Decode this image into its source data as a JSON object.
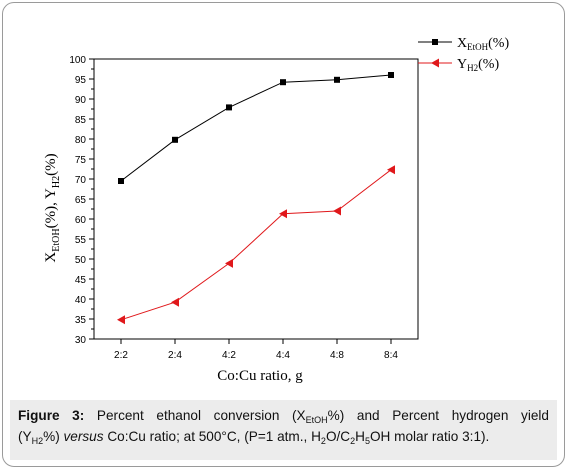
{
  "chart_data": {
    "type": "line",
    "categories": [
      "2:2",
      "2:4",
      "4:2",
      "4:4",
      "4:8",
      "8:4"
    ],
    "series": [
      {
        "name": "X_EtOH(%)",
        "values": [
          69.5,
          79.8,
          87.9,
          94.2,
          94.8,
          96.0
        ],
        "color": "#000000",
        "marker": "square"
      },
      {
        "name": "Y_H2(%)",
        "values": [
          34.8,
          39.2,
          48.9,
          61.3,
          62.0,
          72.3
        ],
        "color": "#e0181b",
        "marker": "triangle-left"
      }
    ],
    "title": "",
    "xlabel": "Co:Cu ratio, g",
    "ylabel": "X_EtOH(%), Y_H2(%)",
    "ylim": [
      30,
      100
    ],
    "yticks": [
      30,
      35,
      40,
      45,
      50,
      55,
      60,
      65,
      70,
      75,
      80,
      85,
      90,
      95,
      100
    ],
    "grid": false,
    "legend_position": "top-right"
  },
  "legend": {
    "x_main": "X",
    "x_sub": "EtOH",
    "x_tail": "(%)",
    "y_main": "Y",
    "y_sub": "H2",
    "y_tail": "(%)"
  },
  "axis_labels": {
    "x": "Co:Cu ratio, g",
    "y_part1": "X",
    "y_sub1": "EtOH",
    "y_part2": "(%),  Y",
    "y_sub2": "H2",
    "y_part3": "(%)"
  },
  "caption": {
    "fig_label": "Figure 3:",
    "t1": " Percent ethanol conversion (X",
    "s1": "EtOH",
    "t2": "%) and Percent hydrogen yield",
    "t3": "(Y",
    "s2": "H2",
    "t4": "%) ",
    "i1": "versus",
    "t5": " Co:Cu ratio; at 500°C, (P=1 atm., H",
    "s3": "2",
    "t6": "O/C",
    "s4": "2",
    "t7": "H",
    "s5": "5",
    "t8": "OH molar ratio 3:1)."
  }
}
